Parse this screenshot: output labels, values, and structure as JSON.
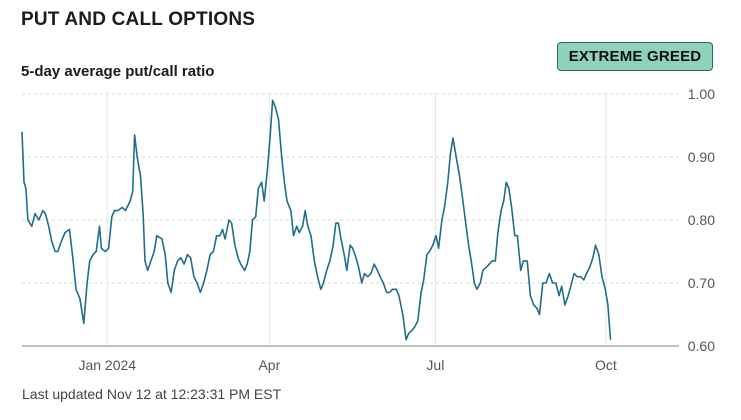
{
  "header": {
    "title": "PUT AND CALL OPTIONS",
    "subtitle": "5-day average put/call ratio",
    "badge": "EXTREME GREED",
    "badge_color": "#8fd1bd"
  },
  "footer": {
    "updated": "Last updated Nov 12 at 12:23:31 PM EST"
  },
  "chart_data": {
    "type": "line",
    "title": "5-day average put/call ratio",
    "xlabel": "",
    "ylabel": "",
    "x_range": [
      0,
      100
    ],
    "ylim": [
      0.6,
      1.0
    ],
    "y_ticks": [
      1.0,
      0.9,
      0.8,
      0.7,
      0.6
    ],
    "y_tick_labels": [
      "1.00",
      "0.90",
      "0.80",
      "0.70",
      "0.60"
    ],
    "x_ticks": [
      {
        "label": "Jan 2024",
        "x": 13.1
      },
      {
        "label": "Apr",
        "x": 38.0
      },
      {
        "label": "Jul",
        "x": 63.5
      },
      {
        "label": "Oct",
        "x": 89.7
      }
    ],
    "grid": true,
    "line_color": "#1f6e8c",
    "series": [
      {
        "values": [
          [
            0.0,
            0.94
          ],
          [
            0.3,
            0.86
          ],
          [
            0.6,
            0.85
          ],
          [
            0.9,
            0.8
          ],
          [
            1.5,
            0.79
          ],
          [
            2.0,
            0.81
          ],
          [
            2.6,
            0.8
          ],
          [
            3.2,
            0.815
          ],
          [
            3.6,
            0.81
          ],
          [
            4.1,
            0.79
          ],
          [
            4.6,
            0.765
          ],
          [
            5.1,
            0.75
          ],
          [
            5.5,
            0.75
          ],
          [
            6.0,
            0.765
          ],
          [
            6.6,
            0.78
          ],
          [
            7.3,
            0.785
          ],
          [
            7.8,
            0.74
          ],
          [
            8.3,
            0.69
          ],
          [
            8.9,
            0.675
          ],
          [
            9.5,
            0.636
          ],
          [
            10.0,
            0.7
          ],
          [
            10.4,
            0.735
          ],
          [
            10.9,
            0.745
          ],
          [
            11.4,
            0.75
          ],
          [
            11.9,
            0.79
          ],
          [
            12.2,
            0.755
          ],
          [
            12.8,
            0.75
          ],
          [
            13.3,
            0.755
          ],
          [
            13.8,
            0.805
          ],
          [
            14.2,
            0.815
          ],
          [
            14.7,
            0.815
          ],
          [
            15.4,
            0.82
          ],
          [
            15.9,
            0.815
          ],
          [
            16.6,
            0.83
          ],
          [
            17.0,
            0.845
          ],
          [
            17.3,
            0.935
          ],
          [
            17.7,
            0.9
          ],
          [
            18.2,
            0.87
          ],
          [
            18.6,
            0.81
          ],
          [
            18.9,
            0.735
          ],
          [
            19.3,
            0.72
          ],
          [
            19.8,
            0.735
          ],
          [
            20.3,
            0.75
          ],
          [
            20.7,
            0.775
          ],
          [
            21.5,
            0.77
          ],
          [
            22.0,
            0.745
          ],
          [
            22.4,
            0.7
          ],
          [
            22.9,
            0.685
          ],
          [
            23.4,
            0.72
          ],
          [
            23.9,
            0.735
          ],
          [
            24.4,
            0.74
          ],
          [
            24.9,
            0.73
          ],
          [
            25.4,
            0.745
          ],
          [
            25.9,
            0.74
          ],
          [
            26.4,
            0.71
          ],
          [
            26.9,
            0.7
          ],
          [
            27.4,
            0.685
          ],
          [
            27.9,
            0.7
          ],
          [
            28.4,
            0.72
          ],
          [
            28.9,
            0.745
          ],
          [
            29.4,
            0.75
          ],
          [
            29.9,
            0.775
          ],
          [
            30.4,
            0.775
          ],
          [
            30.8,
            0.785
          ],
          [
            31.2,
            0.77
          ],
          [
            31.8,
            0.8
          ],
          [
            32.2,
            0.795
          ],
          [
            32.7,
            0.76
          ],
          [
            33.2,
            0.74
          ],
          [
            33.6,
            0.73
          ],
          [
            34.2,
            0.72
          ],
          [
            34.6,
            0.73
          ],
          [
            35.0,
            0.75
          ],
          [
            35.4,
            0.8
          ],
          [
            35.9,
            0.805
          ],
          [
            36.3,
            0.85
          ],
          [
            36.8,
            0.86
          ],
          [
            37.2,
            0.83
          ],
          [
            37.7,
            0.88
          ],
          [
            38.1,
            0.93
          ],
          [
            38.5,
            0.99
          ],
          [
            38.9,
            0.98
          ],
          [
            39.4,
            0.96
          ],
          [
            39.9,
            0.9
          ],
          [
            40.3,
            0.86
          ],
          [
            40.7,
            0.83
          ],
          [
            41.3,
            0.815
          ],
          [
            41.7,
            0.775
          ],
          [
            42.2,
            0.79
          ],
          [
            42.6,
            0.78
          ],
          [
            43.1,
            0.79
          ],
          [
            43.5,
            0.815
          ],
          [
            43.9,
            0.79
          ],
          [
            44.4,
            0.775
          ],
          [
            44.9,
            0.735
          ],
          [
            45.4,
            0.71
          ],
          [
            45.9,
            0.69
          ],
          [
            46.3,
            0.7
          ],
          [
            46.8,
            0.72
          ],
          [
            47.3,
            0.735
          ],
          [
            47.8,
            0.76
          ],
          [
            48.2,
            0.795
          ],
          [
            48.6,
            0.795
          ],
          [
            49.0,
            0.77
          ],
          [
            49.5,
            0.745
          ],
          [
            49.9,
            0.72
          ],
          [
            50.4,
            0.76
          ],
          [
            50.8,
            0.755
          ],
          [
            51.3,
            0.74
          ],
          [
            51.7,
            0.725
          ],
          [
            52.2,
            0.7
          ],
          [
            52.6,
            0.715
          ],
          [
            53.1,
            0.71
          ],
          [
            53.6,
            0.715
          ],
          [
            54.1,
            0.73
          ],
          [
            54.6,
            0.72
          ],
          [
            55.0,
            0.71
          ],
          [
            55.5,
            0.7
          ],
          [
            56.0,
            0.685
          ],
          [
            56.5,
            0.685
          ],
          [
            56.9,
            0.69
          ],
          [
            57.5,
            0.69
          ],
          [
            57.9,
            0.68
          ],
          [
            58.5,
            0.65
          ],
          [
            59.0,
            0.61
          ],
          [
            59.4,
            0.62
          ],
          [
            59.9,
            0.625
          ],
          [
            60.3,
            0.63
          ],
          [
            60.8,
            0.64
          ],
          [
            61.3,
            0.685
          ],
          [
            61.7,
            0.705
          ],
          [
            62.2,
            0.745
          ],
          [
            62.6,
            0.75
          ],
          [
            63.1,
            0.76
          ],
          [
            63.6,
            0.775
          ],
          [
            64.0,
            0.755
          ],
          [
            64.5,
            0.8
          ],
          [
            64.9,
            0.82
          ],
          [
            65.4,
            0.86
          ],
          [
            65.8,
            0.905
          ],
          [
            66.2,
            0.93
          ],
          [
            66.7,
            0.9
          ],
          [
            67.2,
            0.87
          ],
          [
            67.6,
            0.84
          ],
          [
            68.1,
            0.8
          ],
          [
            68.6,
            0.76
          ],
          [
            69.0,
            0.735
          ],
          [
            69.5,
            0.7
          ],
          [
            69.9,
            0.69
          ],
          [
            70.4,
            0.7
          ],
          [
            70.8,
            0.72
          ],
          [
            71.3,
            0.725
          ],
          [
            71.8,
            0.73
          ],
          [
            72.2,
            0.735
          ],
          [
            72.7,
            0.735
          ],
          [
            73.1,
            0.78
          ],
          [
            73.6,
            0.815
          ],
          [
            74.0,
            0.83
          ],
          [
            74.4,
            0.86
          ],
          [
            74.8,
            0.85
          ],
          [
            75.2,
            0.82
          ],
          [
            75.7,
            0.775
          ],
          [
            76.1,
            0.775
          ],
          [
            76.6,
            0.72
          ],
          [
            77.0,
            0.735
          ],
          [
            77.6,
            0.735
          ],
          [
            78.1,
            0.68
          ],
          [
            78.6,
            0.665
          ],
          [
            79.1,
            0.66
          ],
          [
            79.5,
            0.65
          ],
          [
            80.0,
            0.7
          ],
          [
            80.5,
            0.7
          ],
          [
            81.0,
            0.715
          ],
          [
            81.5,
            0.7
          ],
          [
            82.0,
            0.7
          ],
          [
            82.5,
            0.68
          ],
          [
            82.9,
            0.695
          ],
          [
            83.4,
            0.665
          ],
          [
            83.9,
            0.68
          ],
          [
            84.3,
            0.695
          ],
          [
            84.8,
            0.715
          ],
          [
            85.3,
            0.71
          ],
          [
            85.8,
            0.71
          ],
          [
            86.3,
            0.705
          ],
          [
            86.7,
            0.715
          ],
          [
            87.2,
            0.725
          ],
          [
            87.7,
            0.74
          ],
          [
            88.1,
            0.76
          ],
          [
            88.6,
            0.745
          ],
          [
            89.1,
            0.71
          ],
          [
            89.6,
            0.69
          ],
          [
            90.0,
            0.665
          ],
          [
            90.4,
            0.61
          ]
        ]
      }
    ]
  }
}
